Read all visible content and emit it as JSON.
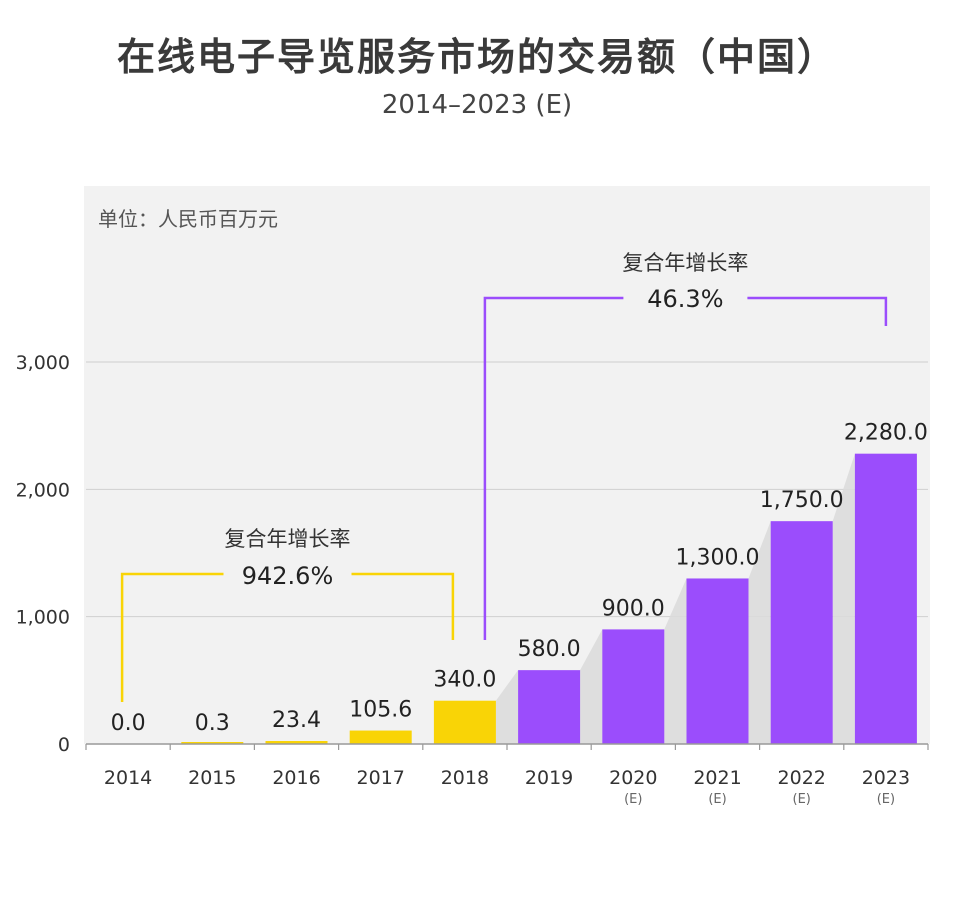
{
  "title": "在线电子导览服务市场的交易额（中国）",
  "subtitle": "2014–2023 (E)",
  "colors": {
    "yellow": "#f9d406",
    "purple": "#9b4dfc",
    "panel": "#f2f2f2",
    "grid": "#cfcfcf",
    "shade": "#dadada"
  },
  "chart_data": {
    "type": "bar",
    "unit_label": "单位：人民币百万元",
    "categories": [
      "2014",
      "2015",
      "2016",
      "2017",
      "2018",
      "2019",
      "2020",
      "2021",
      "2022",
      "2023"
    ],
    "category_sublabels": [
      "",
      "",
      "",
      "",
      "",
      "",
      "(E)",
      "(E)",
      "(E)",
      "(E)"
    ],
    "values": [
      0.0,
      0.3,
      23.4,
      105.6,
      340.0,
      580.0,
      900.0,
      1300.0,
      1750.0,
      2280.0
    ],
    "value_labels": [
      "0.0",
      "0.3",
      "23.4",
      "105.6",
      "340.0",
      "580.0",
      "900.0",
      "1,300.0",
      "1,750.0",
      "2,280.0"
    ],
    "bar_colors": [
      "yellow",
      "yellow",
      "yellow",
      "yellow",
      "yellow",
      "purple",
      "purple",
      "purple",
      "purple",
      "purple"
    ],
    "ylim": [
      0,
      3000
    ],
    "yticks": [
      0,
      1000,
      2000,
      3000
    ],
    "ytick_labels": [
      "0",
      "1,000",
      "2,000",
      "3,000"
    ],
    "grid": true,
    "annotations": [
      {
        "label": "复合年增长率",
        "value": "942.6%",
        "from_category": "2014",
        "to_category": "2018",
        "color": "yellow"
      },
      {
        "label": "复合年增长率",
        "value": "46.3%",
        "from_category": "2018",
        "to_category": "2023",
        "color": "purple"
      }
    ]
  }
}
